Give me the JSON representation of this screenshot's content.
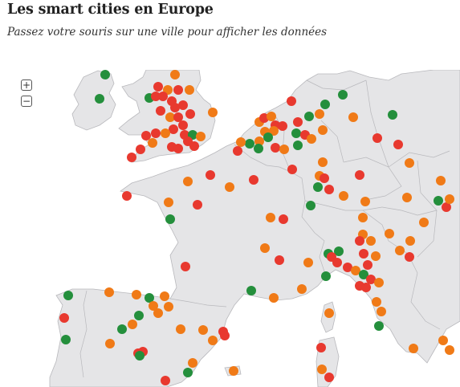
{
  "header": {
    "title": "Les smart cities en Europe",
    "subtitle": "Passez votre souris sur une ville pour afficher les données"
  },
  "map": {
    "zoom_in_label": "+",
    "zoom_out_label": "−",
    "land_color": "#e5e5e7",
    "border_color": "#b8b8bc",
    "water_color": "#ffffff",
    "category_colors": {
      "red": "#e8392f",
      "orange": "#f07a17",
      "green": "#248f3c"
    }
  }
}
